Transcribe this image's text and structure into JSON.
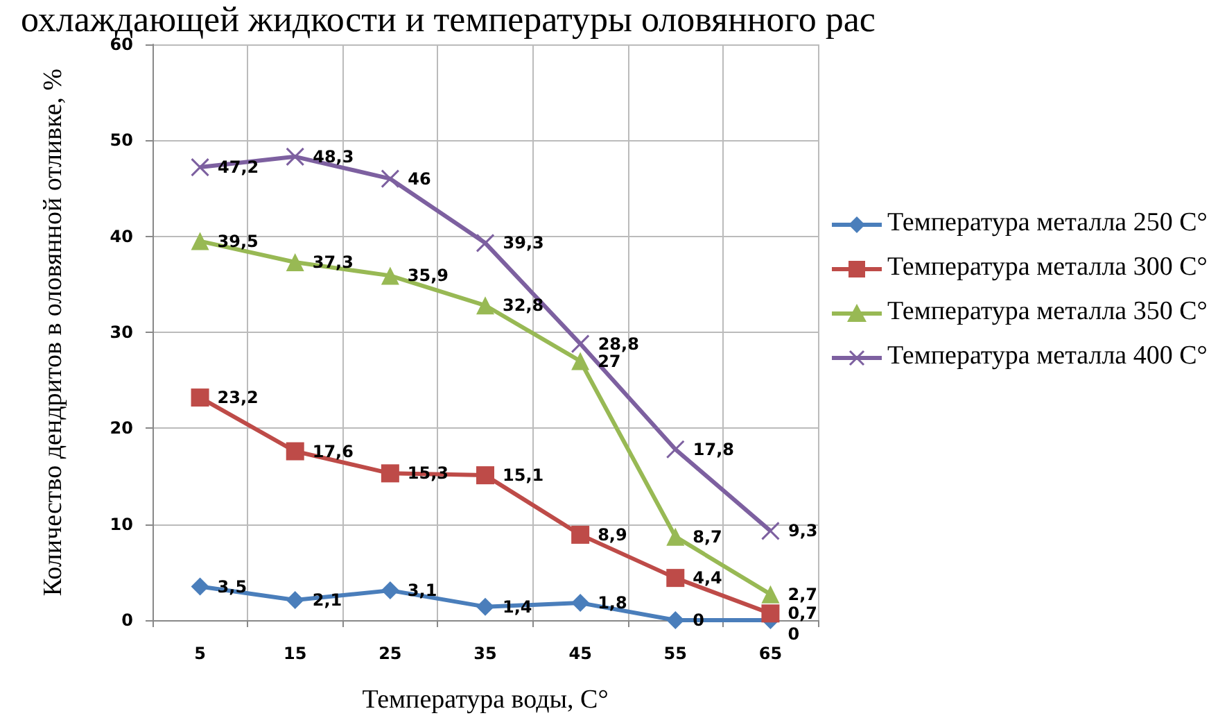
{
  "chart_data": {
    "type": "line",
    "title": "охлаждающей жидкости и температуры оловянного рас",
    "xlabel": "Температура воды, С°",
    "ylabel": "Количество дендритов в оловянной отливке, %",
    "categories": [
      "5",
      "15",
      "25",
      "35",
      "45",
      "55",
      "65"
    ],
    "series": [
      {
        "name": "Температура металла 250 С°",
        "color": "#4a7ebb",
        "marker": "diamond",
        "values": [
          3.5,
          2.1,
          3.1,
          1.4,
          1.8,
          0,
          0
        ],
        "value_labels": [
          "3,5",
          "2,1",
          "3,1",
          "1,4",
          "1,8",
          "0",
          "0"
        ]
      },
      {
        "name": "Температура металла 300 С°",
        "color": "#be4b48",
        "marker": "square",
        "values": [
          23.2,
          17.6,
          15.3,
          15.1,
          8.9,
          4.4,
          0.7
        ],
        "value_labels": [
          "23,2",
          "17,6",
          "15,3",
          "15,1",
          "8,9",
          "4,4",
          "0,7"
        ]
      },
      {
        "name": "Температура металла 350 С°",
        "color": "#98b954",
        "marker": "triangle",
        "values": [
          39.5,
          37.3,
          35.9,
          32.8,
          27,
          8.7,
          2.7
        ],
        "value_labels": [
          "39,5",
          "37,3",
          "35,9",
          "32,8",
          "27",
          "8,7",
          "2,7"
        ]
      },
      {
        "name": "Температура металла 400 С°",
        "color": "#7d60a0",
        "marker": "cross",
        "values": [
          47.2,
          48.3,
          46,
          39.3,
          28.8,
          17.8,
          9.3
        ],
        "value_labels": [
          "47,2",
          "48,3",
          "46",
          "39,3",
          "28,8",
          "17,8",
          "9,3"
        ]
      }
    ],
    "ylim": [
      0,
      60
    ],
    "yticks": [
      0,
      10,
      20,
      30,
      40,
      50,
      60
    ],
    "grid": true,
    "legend": "right"
  }
}
